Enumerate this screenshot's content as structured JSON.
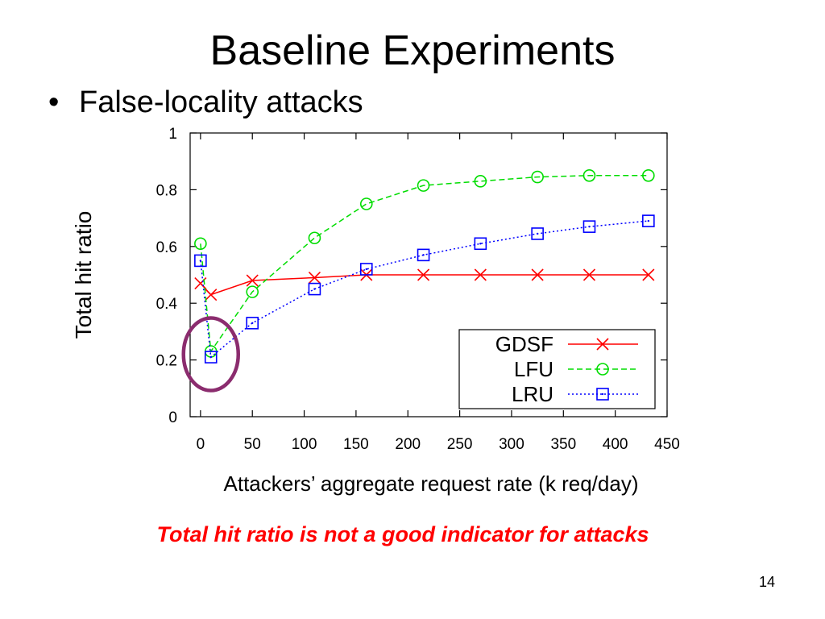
{
  "slide": {
    "title": "Baseline Experiments",
    "bullet_symbol": "•",
    "bullet_text": "False-locality attacks",
    "caption": "Total hit ratio is not a good indicator for attacks",
    "page_number": "14"
  },
  "colors": {
    "GDSF": "#ff0000",
    "LFU": "#00dd00",
    "LRU": "#0000ff",
    "highlight": "#8b2c6e",
    "caption": "#ff0000"
  },
  "chart_data": {
    "type": "line",
    "xlabel": "Attackers’ aggregate request rate (k req/day)",
    "ylabel": "Total hit ratio",
    "xlim": [
      -10,
      450
    ],
    "ylim": [
      0,
      1
    ],
    "xticks": [
      "0",
      "50",
      "100",
      "150",
      "200",
      "250",
      "300",
      "350",
      "400",
      "450"
    ],
    "xtick_values": [
      0,
      50,
      100,
      150,
      200,
      250,
      300,
      350,
      400,
      450
    ],
    "yticks": [
      "0",
      "0.2",
      "0.4",
      "0.6",
      "0.8",
      "1"
    ],
    "ytick_values": [
      0,
      0.2,
      0.4,
      0.6,
      0.8,
      1
    ],
    "grid": false,
    "legend_position": "bottom-right",
    "series": [
      {
        "name": "GDSF",
        "marker": "x",
        "line_style": "solid",
        "x": [
          0,
          10,
          50,
          110,
          160,
          215,
          270,
          325,
          375,
          432
        ],
        "y": [
          0.47,
          0.43,
          0.48,
          0.49,
          0.5,
          0.5,
          0.5,
          0.5,
          0.5,
          0.5
        ]
      },
      {
        "name": "LFU",
        "marker": "circle",
        "line_style": "dashed",
        "x": [
          0,
          10,
          50,
          110,
          160,
          215,
          270,
          325,
          375,
          432
        ],
        "y": [
          0.61,
          0.23,
          0.44,
          0.63,
          0.75,
          0.815,
          0.83,
          0.845,
          0.85,
          0.85
        ]
      },
      {
        "name": "LRU",
        "marker": "square",
        "line_style": "dotted",
        "x": [
          0,
          10,
          50,
          110,
          160,
          215,
          270,
          325,
          375,
          432
        ],
        "y": [
          0.55,
          0.21,
          0.33,
          0.45,
          0.52,
          0.57,
          0.61,
          0.645,
          0.67,
          0.69
        ]
      }
    ],
    "annotations": [
      {
        "type": "ellipse-highlight",
        "center_x": 10,
        "center_y": 0.22
      }
    ]
  }
}
